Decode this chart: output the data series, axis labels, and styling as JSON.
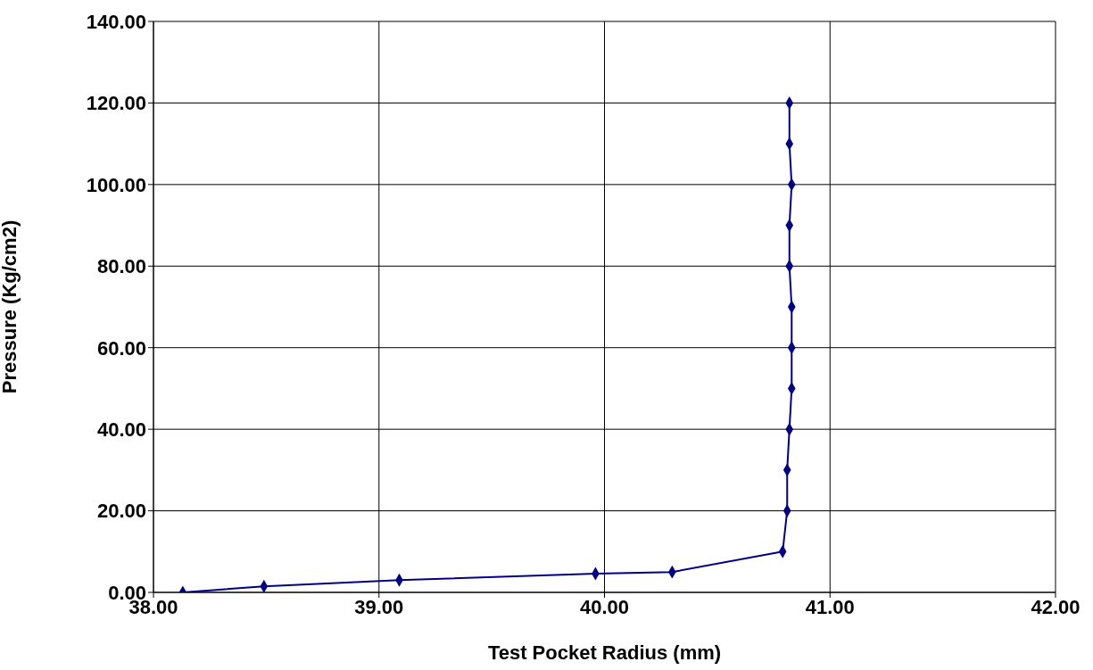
{
  "chart_data": {
    "type": "line",
    "xlabel": "Test Pocket Radius (mm)",
    "ylabel": "Pressure (Kg/cm2)",
    "x": [
      38.13,
      38.49,
      39.09,
      39.96,
      40.3,
      40.79,
      40.81,
      40.81,
      40.82,
      40.83,
      40.83,
      40.83,
      40.82,
      40.82,
      40.83,
      40.82,
      40.82
    ],
    "series": [
      {
        "color": "#000080",
        "values": [
          0,
          1.5,
          3,
          4.6,
          5,
          10,
          20,
          30,
          40,
          50,
          60,
          70,
          80,
          90,
          100,
          110,
          120
        ]
      }
    ],
    "marker": "diamond",
    "grid": true,
    "legend": false,
    "xlim": [
      38,
      42
    ],
    "xticks": [
      {
        "value": 38,
        "label": "38.00"
      },
      {
        "value": 39,
        "label": "39.00"
      },
      {
        "value": 40,
        "label": "40.00"
      },
      {
        "value": 41,
        "label": "41.00"
      },
      {
        "value": 42,
        "label": "42.00"
      }
    ],
    "ylim": [
      0,
      140
    ],
    "yticks": [
      {
        "value": 0,
        "label": "0.00"
      },
      {
        "value": 20,
        "label": "20.00"
      },
      {
        "value": 40,
        "label": "40.00"
      },
      {
        "value": 60,
        "label": "60.00"
      },
      {
        "value": 80,
        "label": "80.00"
      },
      {
        "value": 100,
        "label": "100.00"
      },
      {
        "value": 120,
        "label": "120.00"
      },
      {
        "value": 140,
        "label": "140.00"
      }
    ]
  }
}
